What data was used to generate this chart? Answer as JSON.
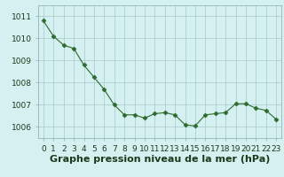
{
  "x": [
    0,
    1,
    2,
    3,
    4,
    5,
    6,
    7,
    8,
    9,
    10,
    11,
    12,
    13,
    14,
    15,
    16,
    17,
    18,
    19,
    20,
    21,
    22,
    23
  ],
  "y": [
    1010.8,
    1010.1,
    1009.7,
    1009.55,
    1008.8,
    1008.25,
    1007.7,
    1007.0,
    1006.55,
    1006.55,
    1006.4,
    1006.6,
    1006.65,
    1006.55,
    1006.1,
    1006.05,
    1006.55,
    1006.6,
    1006.65,
    1007.05,
    1007.05,
    1006.85,
    1006.75,
    1006.35
  ],
  "line_color": "#2d6a2d",
  "marker_color": "#2d6a2d",
  "bg_color": "#d4f0f0",
  "grid_color": "#aac8c8",
  "xlabel": "Graphe pression niveau de la mer (hPa)",
  "xlabel_fontsize": 8,
  "ylim": [
    1005.5,
    1011.5
  ],
  "yticks": [
    1006,
    1007,
    1008,
    1009,
    1010,
    1011
  ],
  "xticks": [
    0,
    1,
    2,
    3,
    4,
    5,
    6,
    7,
    8,
    9,
    10,
    11,
    12,
    13,
    14,
    15,
    16,
    17,
    18,
    19,
    20,
    21,
    22,
    23
  ],
  "tick_fontsize": 6.5,
  "spine_color": "#88aaaa",
  "title": ""
}
